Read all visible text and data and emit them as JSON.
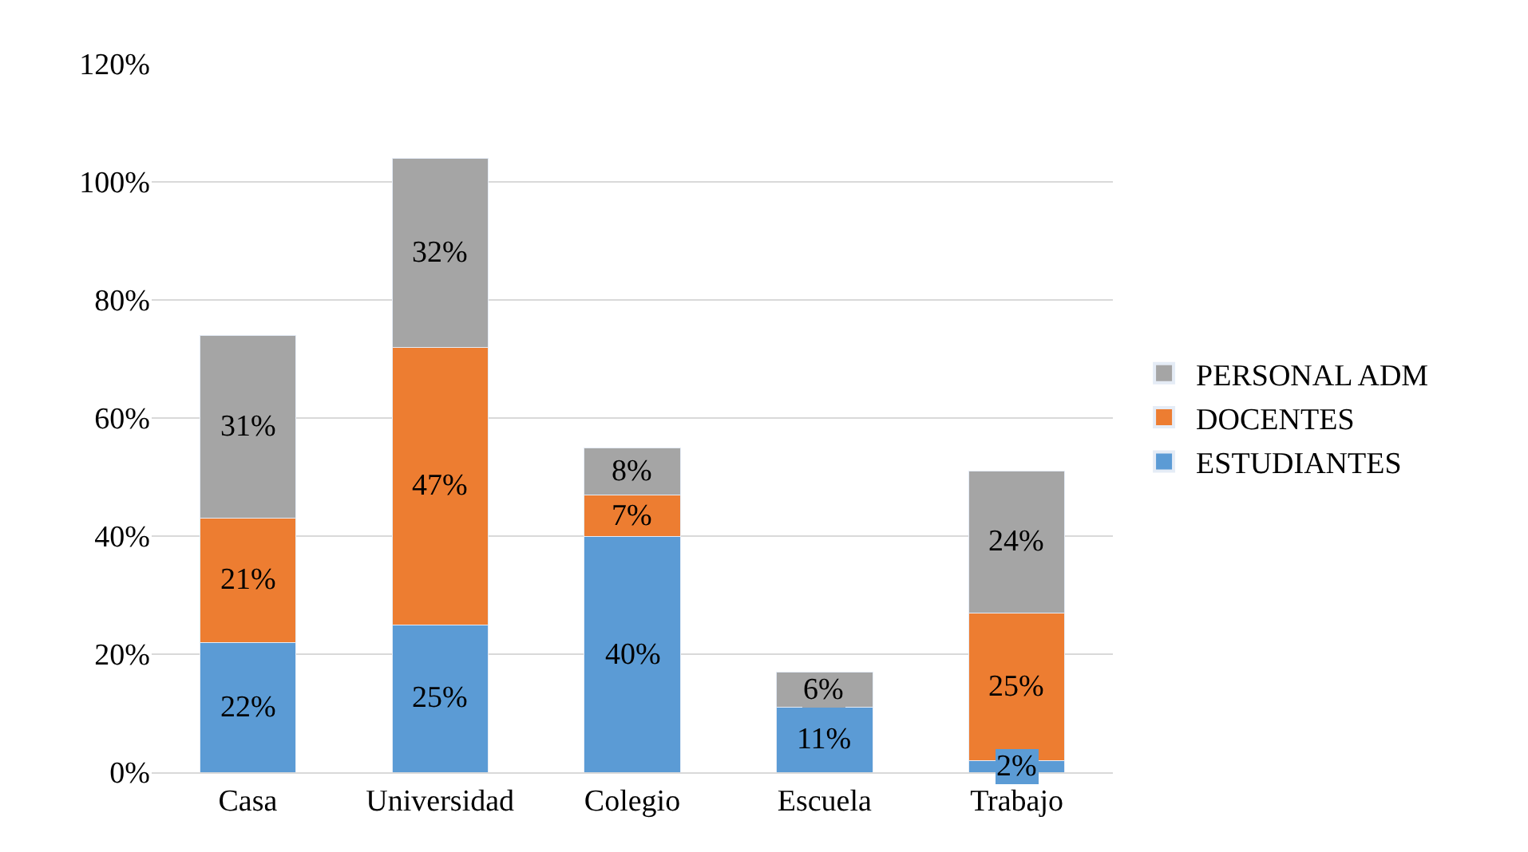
{
  "chart_data": {
    "type": "bar",
    "stacked": true,
    "categories": [
      "Casa",
      "Universidad",
      "Colegio",
      "Escuela",
      "Trabajo"
    ],
    "series": [
      {
        "name": "ESTUDIANTES",
        "color": "#5b9bd5",
        "values": [
          22,
          25,
          40,
          11,
          2
        ],
        "value_labels": [
          "22%",
          "25%",
          "40%",
          "11%",
          "2%"
        ]
      },
      {
        "name": "DOCENTES",
        "color": "#ed7d31",
        "values": [
          21,
          47,
          7,
          null,
          25
        ],
        "value_labels": [
          "21%",
          "47%",
          "7%",
          null,
          "25%"
        ]
      },
      {
        "name": "PERSONAL ADM",
        "color": "#a5a5a5",
        "values": [
          31,
          32,
          8,
          6,
          24
        ],
        "value_labels": [
          "31%",
          "32%",
          "8%",
          "6%",
          "24%"
        ]
      }
    ],
    "ylim": [
      0,
      120
    ],
    "yticks": [
      {
        "value": 0,
        "label": "0%"
      },
      {
        "value": 20,
        "label": "20%"
      },
      {
        "value": 40,
        "label": "40%"
      },
      {
        "value": 60,
        "label": "60%"
      },
      {
        "value": 80,
        "label": "80%"
      },
      {
        "value": 100,
        "label": "100%"
      },
      {
        "value": 120,
        "label": "120%"
      }
    ],
    "grid": "y",
    "legend": "right"
  }
}
